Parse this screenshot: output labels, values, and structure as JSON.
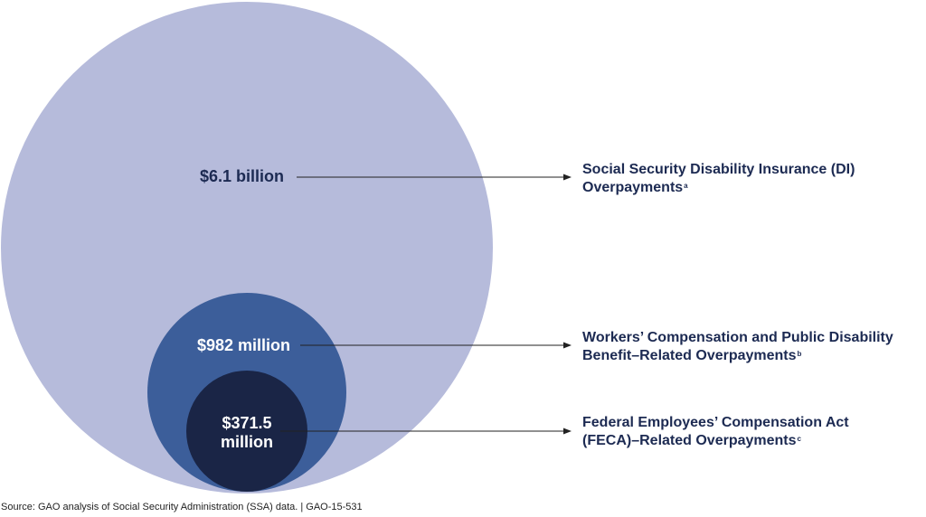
{
  "chart_data": {
    "type": "nested-circles",
    "series": [
      {
        "value_label": "$6.1 billion",
        "value_millions": 6100,
        "label_line1": "Social Security Disability Insurance (DI)",
        "label_line2": "Overpayments",
        "footnote": "a",
        "color": "#b6bbdb"
      },
      {
        "value_label": "$982 million",
        "value_millions": 982,
        "label_line1": "Workers’ Compensation and Public Disability",
        "label_line2": "Benefit–Related Overpayments",
        "footnote": "b",
        "color": "#3c5e9a"
      },
      {
        "value_label_line1": "$371.5",
        "value_label_line2": "million",
        "value_millions": 371.5,
        "label_line1": "Federal Employees’ Compensation Act",
        "label_line2": "(FECA)–Related Overpayments",
        "footnote": "c",
        "color": "#1a2546"
      }
    ]
  },
  "source_text": "Source: GAO analysis of Social Security Administration (SSA) data.  |  GAO-15-531"
}
